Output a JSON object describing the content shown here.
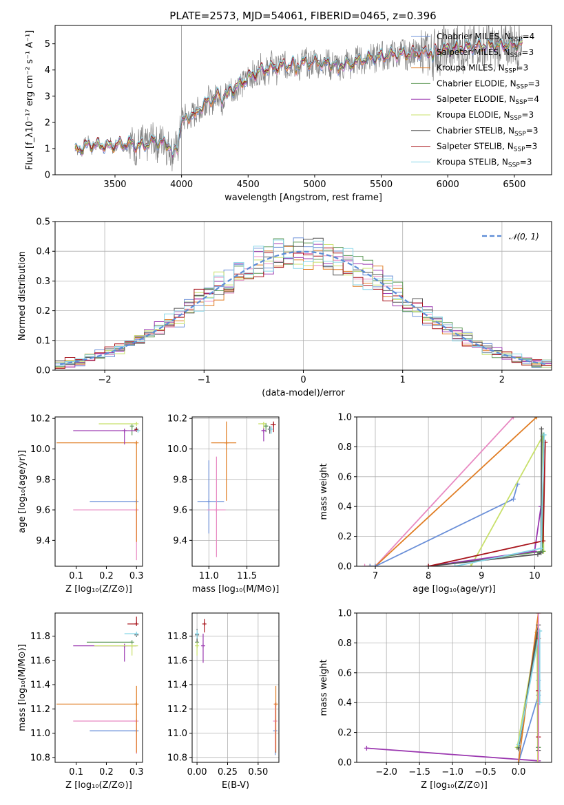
{
  "figure_title": "PLATE=2573, MJD=54061, FIBERID=0465, z=0.396",
  "colors": {
    "chabrier_miles": "#6a8fd8",
    "salpeter_miles": "#e889c2",
    "kroupa_miles": "#e07c22",
    "chabrier_elodie": "#5f9a58",
    "salpeter_elodie": "#9b38b0",
    "kroupa_elodie": "#c8e06a",
    "chabrier_stelib": "#555555",
    "salpeter_stelib": "#a8141c",
    "kroupa_stelib": "#86d6e8",
    "data": "#808080",
    "gaussian": "#5b8bd6"
  },
  "chart_data": [
    {
      "id": "spectrum",
      "type": "line",
      "xlabel": "wavelength [Angstrom, rest frame]",
      "ylabel": "Flux [f_λ10⁻¹⁷ erg cm⁻² s⁻¹ A⁻¹]",
      "xlim": [
        3050,
        6780
      ],
      "ylim": [
        0,
        5.7
      ],
      "xticks": [
        3500,
        4000,
        4500,
        5000,
        5500,
        6000,
        6500
      ],
      "yticks": [
        0,
        1,
        2,
        3,
        4,
        5
      ],
      "legend_position": "top-right",
      "continuum_shape": {
        "wavelength": [
          3200,
          3300,
          3450,
          3600,
          3700,
          3800,
          3900,
          3950,
          4000,
          4100,
          4200,
          4300,
          4400,
          4500,
          4600,
          4800,
          5000,
          5200,
          5400,
          5600,
          5800,
          6000,
          6200,
          6400,
          6600
        ],
        "flux": [
          0.9,
          1.15,
          1.1,
          1.2,
          1.1,
          1.3,
          1.15,
          1.0,
          2.0,
          2.4,
          2.8,
          3.1,
          3.3,
          3.7,
          4.0,
          4.2,
          4.3,
          4.2,
          4.45,
          4.6,
          4.65,
          4.8,
          4.9,
          4.95,
          5.0
        ]
      },
      "series": [
        {
          "name": "Chabrier MILES, N",
          "sub": "SSP",
          "suffix": "=4",
          "color_key": "chabrier_miles"
        },
        {
          "name": "Salpeter MILES, N",
          "sub": "SSP",
          "suffix": "=3",
          "color_key": "salpeter_miles"
        },
        {
          "name": "Kroupa MILES, N",
          "sub": "SSP",
          "suffix": "=3",
          "color_key": "kroupa_miles"
        },
        {
          "name": "Chabrier ELODIE, N",
          "sub": "SSP",
          "suffix": "=3",
          "color_key": "chabrier_elodie"
        },
        {
          "name": "Salpeter ELODIE, N",
          "sub": "SSP",
          "suffix": "=4",
          "color_key": "salpeter_elodie"
        },
        {
          "name": "Kroupa ELODIE, N",
          "sub": "SSP",
          "suffix": "=3",
          "color_key": "kroupa_elodie"
        },
        {
          "name": "Chabrier STELIB, N",
          "sub": "SSP",
          "suffix": "=3",
          "color_key": "chabrier_stelib"
        },
        {
          "name": "Salpeter STELIB, N",
          "sub": "SSP",
          "suffix": "=3",
          "color_key": "salpeter_stelib"
        },
        {
          "name": "Kroupa STELIB, N",
          "sub": "SSP",
          "suffix": "=3",
          "color_key": "kroupa_stelib"
        }
      ]
    },
    {
      "id": "residuals",
      "type": "histogram",
      "xlabel": "(data-model)/error",
      "ylabel": "Normed distribution",
      "xlim": [
        -2.5,
        2.5
      ],
      "ylim": [
        0,
        0.5
      ],
      "xticks": [
        -2,
        -1,
        0,
        1,
        2
      ],
      "yticks": [
        0.0,
        0.1,
        0.2,
        0.3,
        0.4,
        0.5
      ],
      "grid": true,
      "legend_position": "top-right",
      "reference_curve": {
        "label": "𝒩(0, 1)",
        "mean": 0,
        "sigma": 1,
        "color_key": "gaussian",
        "style": "dashed"
      },
      "bin_start": -2.5,
      "bin_width": 0.1
    },
    {
      "id": "age_vs_z",
      "type": "errorbar",
      "xlabel": "Z [log₁₀(Z/Z⊙)]",
      "ylabel": "age  [log₁₀(age/yr)]",
      "xlim": [
        0.03,
        0.32
      ],
      "ylim": [
        9.23,
        10.21
      ],
      "xticks": [
        0.1,
        0.2,
        0.3
      ],
      "yticks": [
        9.4,
        9.6,
        9.8,
        10.0,
        10.2
      ],
      "grid": false,
      "points": [
        {
          "color_key": "chabrier_miles",
          "x": 0.3,
          "y": 9.655,
          "xerr_lo": 0.155,
          "xerr_hi": 0.0,
          "yerr_lo": 0.0,
          "yerr_hi": 0.0
        },
        {
          "color_key": "salpeter_miles",
          "x": 0.3,
          "y": 9.6,
          "xerr_lo": 0.21,
          "xerr_hi": 0.0,
          "yerr_lo": 0.33,
          "yerr_hi": 0.0
        },
        {
          "color_key": "kroupa_miles",
          "x": 0.3,
          "y": 10.04,
          "xerr_lo": 0.265,
          "xerr_hi": 0.0,
          "yerr_lo": 0.65,
          "yerr_hi": 0.0
        },
        {
          "color_key": "chabrier_elodie",
          "x": 0.285,
          "y": 10.15,
          "xerr_lo": 0.0,
          "xerr_hi": 0.0,
          "yerr_lo": 0.06,
          "yerr_hi": 0.0
        },
        {
          "color_key": "salpeter_elodie",
          "x": 0.26,
          "y": 10.12,
          "xerr_lo": 0.17,
          "xerr_hi": 0.04,
          "yerr_lo": 0.09,
          "yerr_hi": 0.0
        },
        {
          "color_key": "kroupa_elodie",
          "x": 0.3,
          "y": 10.165,
          "xerr_lo": 0.125,
          "xerr_hi": 0.0,
          "yerr_lo": 0.0,
          "yerr_hi": 0.0
        },
        {
          "color_key": "chabrier_stelib",
          "x": 0.3,
          "y": 10.13,
          "xerr_lo": 0.0,
          "xerr_hi": 0.0,
          "yerr_lo": 0.0,
          "yerr_hi": 0.0
        },
        {
          "color_key": "salpeter_stelib",
          "x": 0.3,
          "y": 10.125,
          "xerr_lo": 0.0,
          "xerr_hi": 0.0,
          "yerr_lo": 0.0,
          "yerr_hi": 0.0
        },
        {
          "color_key": "kroupa_stelib",
          "x": 0.305,
          "y": 10.12,
          "xerr_lo": 0.0,
          "xerr_hi": 0.0,
          "yerr_lo": 0.0,
          "yerr_hi": 0.0
        }
      ]
    },
    {
      "id": "age_vs_mass",
      "type": "errorbar",
      "xlabel": "mass [log₁₀(M/M⊙)]",
      "ylabel": "",
      "xlim": [
        10.78,
        11.92
      ],
      "ylim": [
        9.23,
        10.21
      ],
      "xticks": [
        11.0,
        11.5
      ],
      "yticks": [
        9.4,
        9.6,
        9.8,
        10.0,
        10.2
      ],
      "grid": true,
      "points": [
        {
          "color_key": "chabrier_miles",
          "x": 11.0,
          "y": 9.655,
          "xerr_lo": 0.15,
          "xerr_hi": 0.2,
          "yerr_lo": 0.21,
          "yerr_hi": 0.27
        },
        {
          "color_key": "salpeter_miles",
          "x": 11.1,
          "y": 9.6,
          "xerr_lo": 0.12,
          "xerr_hi": 0.12,
          "yerr_lo": 0.31,
          "yerr_hi": 0.35
        },
        {
          "color_key": "kroupa_miles",
          "x": 11.23,
          "y": 10.04,
          "xerr_lo": 0.2,
          "xerr_hi": 0.13,
          "yerr_lo": 0.38,
          "yerr_hi": 0.14
        },
        {
          "color_key": "chabrier_elodie",
          "x": 11.75,
          "y": 10.15,
          "xerr_lo": 0.03,
          "xerr_hi": 0.03,
          "yerr_lo": 0.04,
          "yerr_hi": 0.02
        },
        {
          "color_key": "salpeter_elodie",
          "x": 11.72,
          "y": 10.12,
          "xerr_lo": 0.03,
          "xerr_hi": 0.03,
          "yerr_lo": 0.07,
          "yerr_hi": 0.03
        },
        {
          "color_key": "kroupa_elodie",
          "x": 11.72,
          "y": 10.165,
          "xerr_lo": 0.07,
          "xerr_hi": 0.03,
          "yerr_lo": 0.03,
          "yerr_hi": 0.01
        },
        {
          "color_key": "chabrier_stelib",
          "x": 11.8,
          "y": 10.13,
          "xerr_lo": 0.02,
          "xerr_hi": 0.02,
          "yerr_lo": 0.03,
          "yerr_hi": 0.02
        },
        {
          "color_key": "salpeter_stelib",
          "x": 11.85,
          "y": 10.16,
          "xerr_lo": 0.04,
          "xerr_hi": 0.03,
          "yerr_lo": 0.05,
          "yerr_hi": 0.02
        },
        {
          "color_key": "kroupa_stelib",
          "x": 11.82,
          "y": 10.13,
          "xerr_lo": 0.02,
          "xerr_hi": 0.02,
          "yerr_lo": 0.03,
          "yerr_hi": 0.02
        }
      ]
    },
    {
      "id": "weight_vs_age",
      "type": "line",
      "xlabel": "age  [log₁₀(age/yr)]",
      "ylabel": "mass weight",
      "xlim": [
        6.65,
        10.32
      ],
      "ylim": [
        0,
        1.0
      ],
      "xticks": [
        7,
        8,
        9,
        10
      ],
      "yticks": [
        0.0,
        0.2,
        0.4,
        0.6,
        0.8,
        1.0
      ],
      "grid": true,
      "series": [
        {
          "color_key": "salpeter_miles",
          "x": [
            6.8,
            7.0,
            9.6
          ],
          "y": [
            0.0,
            0.0,
            1.0
          ]
        },
        {
          "color_key": "kroupa_miles",
          "x": [
            6.9,
            7.0,
            10.04
          ],
          "y": [
            0.0,
            0.0,
            1.0
          ]
        },
        {
          "color_key": "chabrier_miles",
          "x": [
            6.9,
            7.0,
            9.6,
            9.68
          ],
          "y": [
            0.0,
            0.0,
            0.45,
            0.55
          ]
        },
        {
          "color_key": "kroupa_elodie",
          "x": [
            8.8,
            10.15,
            10.17
          ],
          "y": [
            0.0,
            0.87,
            0.1
          ]
        },
        {
          "color_key": "chabrier_elodie",
          "x": [
            8.0,
            10.15,
            10.16
          ],
          "y": [
            0.0,
            0.1,
            0.88
          ]
        },
        {
          "color_key": "salpeter_elodie",
          "x": [
            8.0,
            10.0,
            10.12
          ],
          "y": [
            0.0,
            0.1,
            0.4
          ]
        },
        {
          "color_key": "chabrier_stelib",
          "x": [
            8.0,
            10.06,
            10.12,
            10.13
          ],
          "y": [
            0.0,
            0.08,
            0.09,
            0.92
          ]
        },
        {
          "color_key": "salpeter_stelib",
          "x": [
            8.0,
            10.16,
            10.2
          ],
          "y": [
            0.0,
            0.17,
            0.83
          ]
        },
        {
          "color_key": "kroupa_stelib",
          "x": [
            8.5,
            10.12,
            10.18
          ],
          "y": [
            0.0,
            0.12,
            0.88
          ]
        }
      ]
    },
    {
      "id": "mass_vs_z",
      "type": "errorbar",
      "xlabel": "Z [log₁₀(Z/Z⊙)]",
      "ylabel": "mass [log₁₀(M/M⊙)]",
      "xlim": [
        0.03,
        0.32
      ],
      "ylim": [
        10.76,
        11.99
      ],
      "xticks": [
        0.1,
        0.2,
        0.3
      ],
      "yticks": [
        10.8,
        11.0,
        11.2,
        11.4,
        11.6,
        11.8
      ],
      "grid": false,
      "points": [
        {
          "color_key": "chabrier_miles",
          "x": 0.3,
          "y": 11.02,
          "xerr_lo": 0.155,
          "xerr_hi": 0.0,
          "yerr_lo": 0.0,
          "yerr_hi": 0.0
        },
        {
          "color_key": "salpeter_miles",
          "x": 0.3,
          "y": 11.1,
          "xerr_lo": 0.21,
          "xerr_hi": 0.0,
          "yerr_lo": 0.27,
          "yerr_hi": 0.0
        },
        {
          "color_key": "kroupa_miles",
          "x": 0.3,
          "y": 11.24,
          "xerr_lo": 0.265,
          "xerr_hi": 0.0,
          "yerr_lo": 0.4,
          "yerr_hi": 0.15
        },
        {
          "color_key": "chabrier_elodie",
          "x": 0.285,
          "y": 11.75,
          "xerr_lo": 0.15,
          "xerr_hi": 0.0,
          "yerr_lo": 0.0,
          "yerr_hi": 0.0
        },
        {
          "color_key": "salpeter_elodie",
          "x": 0.26,
          "y": 11.72,
          "xerr_lo": 0.17,
          "xerr_hi": 0.04,
          "yerr_lo": 0.13,
          "yerr_hi": 0.0
        },
        {
          "color_key": "kroupa_elodie",
          "x": 0.285,
          "y": 11.72,
          "xerr_lo": 0.125,
          "xerr_hi": 0.02,
          "yerr_lo": 0.08,
          "yerr_hi": 0.0
        },
        {
          "color_key": "chabrier_stelib",
          "x": 0.3,
          "y": 11.81,
          "xerr_lo": 0.0,
          "xerr_hi": 0.0,
          "yerr_lo": 0.0,
          "yerr_hi": 0.0
        },
        {
          "color_key": "salpeter_stelib",
          "x": 0.3,
          "y": 11.9,
          "xerr_lo": 0.03,
          "xerr_hi": 0.0,
          "yerr_lo": 0.0,
          "yerr_hi": 0.06
        },
        {
          "color_key": "kroupa_stelib",
          "x": 0.3,
          "y": 11.82,
          "xerr_lo": 0.04,
          "xerr_hi": 0.0,
          "yerr_lo": 0.0,
          "yerr_hi": 0.0
        }
      ]
    },
    {
      "id": "mass_vs_ebv",
      "type": "errorbar",
      "xlabel": "E(B-V)",
      "ylabel": "",
      "xlim": [
        -0.04,
        0.67
      ],
      "ylim": [
        10.76,
        11.99
      ],
      "xticks": [
        0.0,
        0.25,
        0.5
      ],
      "yticks": [
        10.8,
        11.0,
        11.2,
        11.4,
        11.6,
        11.8
      ],
      "grid": true,
      "points": [
        {
          "color_key": "chabrier_miles",
          "x": 0.64,
          "y": 11.02,
          "xerr_lo": 0.0,
          "xerr_hi": 0.0,
          "yerr_lo": 0.2,
          "yerr_hi": 0.0
        },
        {
          "color_key": "salpeter_miles",
          "x": 0.64,
          "y": 11.1,
          "xerr_lo": 0.0,
          "xerr_hi": 0.0,
          "yerr_lo": 0.25,
          "yerr_hi": 0.15
        },
        {
          "color_key": "kroupa_miles",
          "x": 0.645,
          "y": 11.24,
          "xerr_lo": 0.0,
          "xerr_hi": 0.0,
          "yerr_lo": 0.4,
          "yerr_hi": 0.15
        },
        {
          "color_key": "chabrier_elodie",
          "x": 0.0,
          "y": 11.75,
          "xerr_lo": 0.0,
          "xerr_hi": 0.0,
          "yerr_lo": 0.05,
          "yerr_hi": 0.05
        },
        {
          "color_key": "salpeter_elodie",
          "x": 0.05,
          "y": 11.72,
          "xerr_lo": 0.0,
          "xerr_hi": 0.0,
          "yerr_lo": 0.14,
          "yerr_hi": 0.1
        },
        {
          "color_key": "kroupa_elodie",
          "x": 0.0,
          "y": 11.72,
          "xerr_lo": 0.0,
          "xerr_hi": 0.0,
          "yerr_lo": 0.08,
          "yerr_hi": 0.05
        },
        {
          "color_key": "chabrier_stelib",
          "x": 0.0,
          "y": 11.81,
          "xerr_lo": 0.0,
          "xerr_hi": 0.0,
          "yerr_lo": 0.06,
          "yerr_hi": 0.05
        },
        {
          "color_key": "salpeter_stelib",
          "x": 0.06,
          "y": 11.9,
          "xerr_lo": 0.0,
          "xerr_hi": 0.0,
          "yerr_lo": 0.07,
          "yerr_hi": 0.04
        },
        {
          "color_key": "kroupa_stelib",
          "x": 0.0,
          "y": 11.82,
          "xerr_lo": 0.0,
          "xerr_hi": 0.0,
          "yerr_lo": 0.04,
          "yerr_hi": 0.03
        }
      ]
    },
    {
      "id": "weight_vs_z",
      "type": "line",
      "xlabel": "Z [log₁₀(Z/Z⊙)]",
      "ylabel": "mass weight",
      "xlim": [
        -2.45,
        0.5
      ],
      "ylim": [
        0,
        1.0
      ],
      "xticks": [
        -2.0,
        -1.5,
        -1.0,
        -0.5,
        0.0
      ],
      "yticks": [
        0.0,
        0.2,
        0.4,
        0.6,
        0.8,
        1.0
      ],
      "grid": true,
      "series": [
        {
          "color_key": "salpeter_elodie",
          "x": [
            -2.3,
            0.3
          ],
          "y": [
            0.095,
            0.01
          ]
        },
        {
          "color_key": "chabrier_miles",
          "x": [
            0.0,
            0.3,
            0.3
          ],
          "y": [
            0.0,
            0.45,
            0.55
          ]
        },
        {
          "color_key": "kroupa_elodie",
          "x": [
            -0.02,
            0.28,
            0.29
          ],
          "y": [
            0.1,
            0.87,
            0.0
          ]
        },
        {
          "color_key": "chabrier_elodie",
          "x": [
            0.0,
            0.3,
            0.3
          ],
          "y": [
            0.1,
            0.88,
            0.1
          ]
        },
        {
          "color_key": "kroupa_miles",
          "x": [
            0.0,
            0.3
          ],
          "y": [
            0.0,
            1.0
          ]
        },
        {
          "color_key": "chabrier_stelib",
          "x": [
            0.0,
            0.3,
            0.3
          ],
          "y": [
            0.09,
            0.92,
            0.08
          ]
        },
        {
          "color_key": "salpeter_stelib",
          "x": [
            0.3,
            0.3,
            0.3
          ],
          "y": [
            0.17,
            0.83,
            0.48
          ]
        },
        {
          "color_key": "kroupa_stelib",
          "x": [
            0.0,
            0.32,
            0.32
          ],
          "y": [
            0.12,
            0.88,
            0.4
          ]
        },
        {
          "color_key": "salpeter_miles",
          "x": [
            0.3,
            0.3
          ],
          "y": [
            0.0,
            1.0
          ]
        }
      ]
    }
  ]
}
